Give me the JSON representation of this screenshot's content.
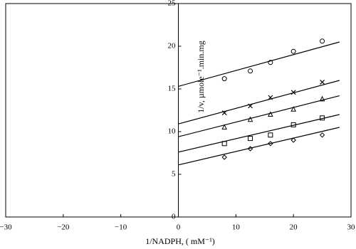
{
  "chart_data": {
    "type": "scatter",
    "x_label": "1/NADPH, ( mM⁻¹)",
    "y_label": "1/v, µmole⁻¹.min.mg",
    "x": [
      8,
      12.5,
      16,
      20,
      25
    ],
    "series": [
      {
        "marker": "circle",
        "color": "#000000",
        "values": [
          16.2,
          17.1,
          18.1,
          19.4,
          20.6
        ]
      },
      {
        "marker": "cross",
        "color": "#000000",
        "values": [
          12.2,
          13.0,
          14.0,
          14.6,
          15.8
        ]
      },
      {
        "marker": "triangle",
        "color": "#000000",
        "values": [
          10.5,
          11.4,
          12.0,
          12.6,
          13.8
        ]
      },
      {
        "marker": "square",
        "color": "#000000",
        "values": [
          8.6,
          9.2,
          9.6,
          10.8,
          11.6
        ]
      },
      {
        "marker": "diamond",
        "color": "#000000",
        "values": [
          7.0,
          8.0,
          8.6,
          9.0,
          9.6
        ]
      }
    ],
    "fit_lines": [
      {
        "x": [
          0,
          28
        ],
        "y": [
          15.3,
          20.5
        ]
      },
      {
        "x": [
          0,
          28
        ],
        "y": [
          10.9,
          16.0
        ]
      },
      {
        "x": [
          0,
          28
        ],
        "y": [
          9.4,
          14.2
        ]
      },
      {
        "x": [
          0,
          28
        ],
        "y": [
          7.6,
          12.0
        ]
      },
      {
        "x": [
          0,
          28
        ],
        "y": [
          6.1,
          10.5
        ]
      }
    ],
    "xlim": [
      -30,
      30
    ],
    "ylim": [
      0,
      25
    ],
    "xticks": [
      {
        "value": -30,
        "label": "−30"
      },
      {
        "value": -20,
        "label": "−20"
      },
      {
        "value": -10,
        "label": "−10"
      },
      0,
      10,
      20,
      30
    ],
    "yticks": [
      0,
      5,
      10,
      15,
      20,
      25
    ]
  }
}
